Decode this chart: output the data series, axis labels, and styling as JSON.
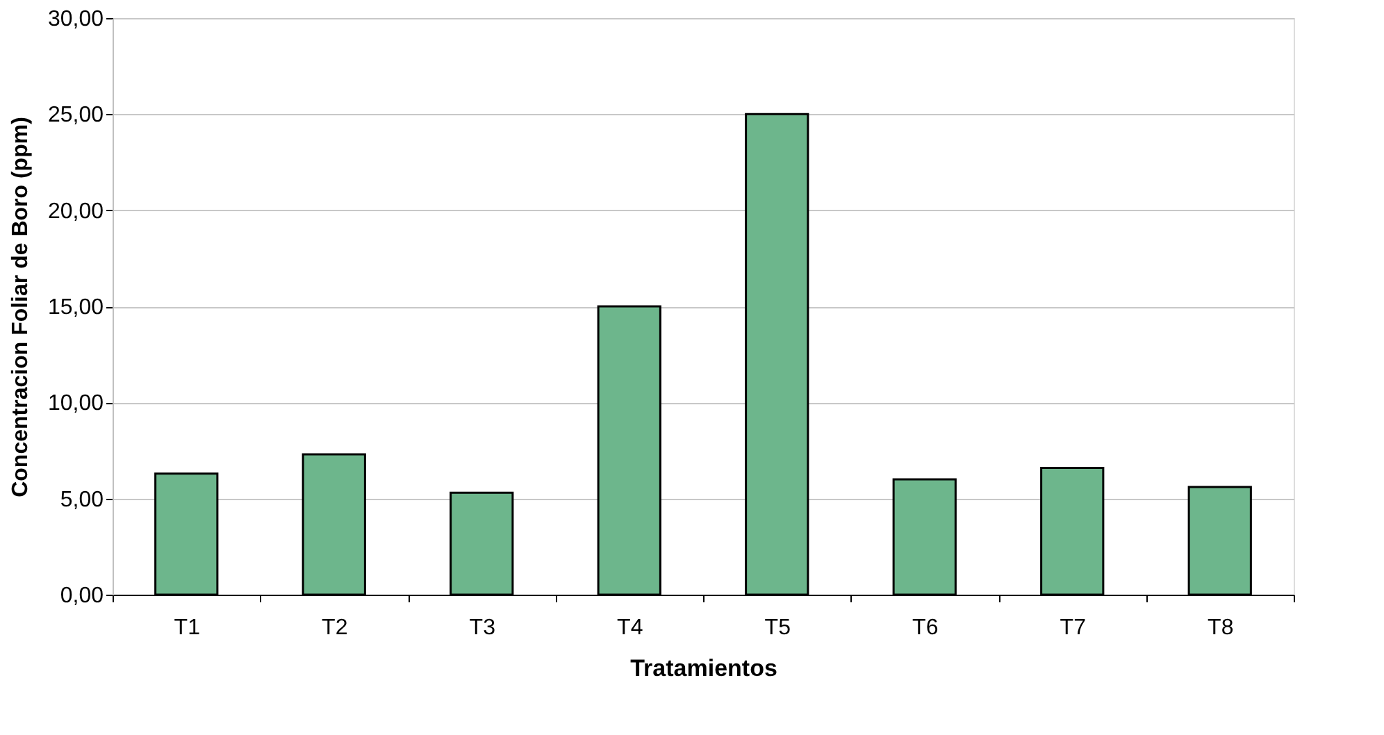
{
  "chart_data": {
    "type": "bar",
    "xlabel": "Tratamientos",
    "ylabel": "Concentracion Foliar de Boro (ppm)",
    "categories": [
      "T1",
      "T2",
      "T3",
      "T4",
      "T5",
      "T6",
      "T7",
      "T8"
    ],
    "values": [
      6.3,
      7.3,
      5.3,
      15.0,
      25.0,
      6.0,
      6.6,
      5.6
    ],
    "color": "#6db68c",
    "ylim": [
      0,
      30
    ],
    "yticks": [
      {
        "value": 0,
        "label": "0,00"
      },
      {
        "value": 5,
        "label": "5,00"
      },
      {
        "value": 10,
        "label": "10,00"
      },
      {
        "value": 15,
        "label": "15,00"
      },
      {
        "value": 20,
        "label": "20,00"
      },
      {
        "value": 25,
        "label": "25,00"
      },
      {
        "value": 30,
        "label": "30,00"
      }
    ],
    "grid": "y",
    "legend": false
  }
}
